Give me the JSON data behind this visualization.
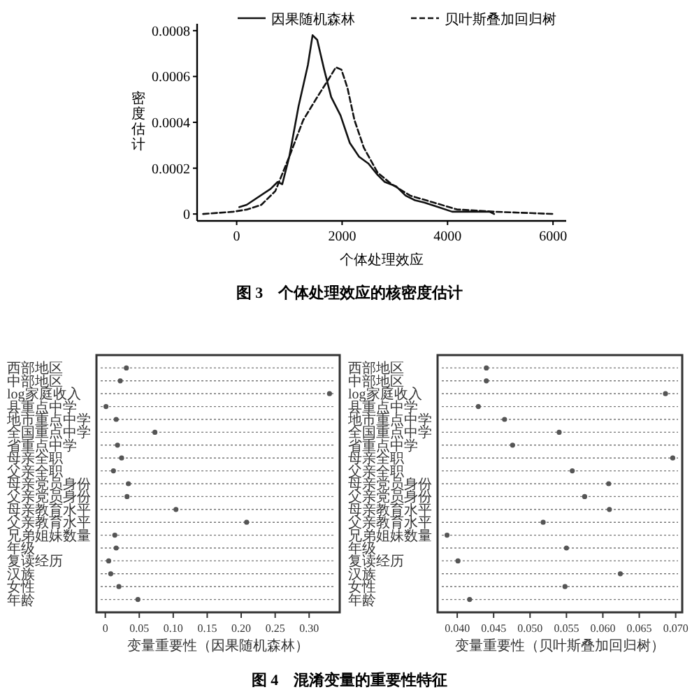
{
  "chart_data": [
    {
      "type": "line",
      "title": "图 3　个体处理效应的核密度估计",
      "xlabel": "个体处理效应",
      "ylabel": "密度估计",
      "legend": "top",
      "grid": false,
      "xlim": [
        -750,
        6250
      ],
      "xticks": [
        0,
        2000,
        4000,
        6000
      ],
      "ylim": [
        -3e-05,
        0.00083
      ],
      "yticks": [
        0,
        0.0002,
        0.0004,
        0.0006,
        0.0008
      ],
      "series": [
        {
          "name": "因果随机森林",
          "color": "#111111",
          "line_style": "solid",
          "x": [
            50,
            190,
            645,
            777,
            865,
            998,
            1174,
            1351,
            1440,
            1528,
            1660,
            1793,
            1970,
            2146,
            2322,
            2499,
            2675,
            2808,
            3029,
            3205,
            3382,
            3559,
            3824,
            4088,
            4530,
            4795,
            4883
          ],
          "values": [
            3e-05,
            4e-05,
            0.00011,
            0.00014,
            0.00013,
            0.00025,
            0.00047,
            0.00065,
            0.00078,
            0.00076,
            0.00063,
            0.00051,
            0.00043,
            0.00031,
            0.00025,
            0.00022,
            0.00017,
            0.00014,
            0.00012,
            8e-05,
            6e-05,
            5e-05,
            3e-05,
            1e-05,
            1e-05,
            1e-05,
            0
          ]
        },
        {
          "name": "贝叶斯叠加回归树",
          "color": "#111111",
          "line_style": "dashed",
          "x": [
            -636,
            -62,
            203,
            468,
            733,
            998,
            1263,
            1528,
            1749,
            1881,
            1987,
            2102,
            2234,
            2411,
            2675,
            2940,
            3294,
            3736,
            4177,
            4883,
            6031
          ],
          "values": [
            0,
            1e-05,
            2e-05,
            4e-05,
            0.0001,
            0.00025,
            0.00041,
            0.00051,
            0.00059,
            0.00064,
            0.00063,
            0.00055,
            0.00041,
            0.00029,
            0.00018,
            0.00013,
            8e-05,
            5e-05,
            2e-05,
            1e-05,
            0
          ]
        }
      ]
    },
    {
      "type": "scatter",
      "orientation": "horizontal",
      "grid": "y",
      "marker": "circle",
      "color": "#555555",
      "xlabel": "变量重要性（因果随机森林）",
      "title": "图 4　混淆变量的重要性特征",
      "categories": [
        "西部地区",
        "中部地区",
        "log家庭收入",
        "县重点中学",
        "地市重点中学",
        "全国重点中学",
        "省重点中学",
        "母亲全职",
        "父亲全职",
        "母亲党员身份",
        "父亲党员身份",
        "母亲教育水平",
        "父亲教育水平",
        "兄弟姐妹数量",
        "年级",
        "复读经历",
        "汉族",
        "女性",
        "年龄"
      ],
      "values": [
        0.031,
        0.022,
        0.33,
        0.001,
        0.016,
        0.073,
        0.018,
        0.024,
        0.012,
        0.034,
        0.032,
        0.104,
        0.208,
        0.014,
        0.016,
        0.005,
        0.008,
        0.02,
        0.048
      ],
      "xlim": [
        -0.013,
        0.345
      ],
      "xticks": [
        0,
        0.05,
        {
          "value": 0.1,
          "label": "0.10"
        },
        0.15,
        {
          "value": 0.2,
          "label": "0.20"
        },
        0.25,
        {
          "value": 0.3,
          "label": "0.30"
        }
      ]
    },
    {
      "type": "scatter",
      "orientation": "horizontal",
      "grid": "y",
      "marker": "circle",
      "color": "#555555",
      "xlabel": "变量重要性（贝叶斯叠加回归树）",
      "categories": [
        "西部地区",
        "中部地区",
        "log家庭收入",
        "县重点中学",
        "地市重点中学",
        "全国重点中学",
        "省重点中学",
        "母亲全职",
        "父亲全职",
        "母亲党员身份",
        "父亲党员身份",
        "母亲教育水平",
        "父亲教育水平",
        "兄弟姐妹数量",
        "年级",
        "复读经历",
        "汉族",
        "女性",
        "年龄"
      ],
      "values": [
        0.044,
        0.044,
        0.0686,
        0.0429,
        0.0465,
        0.054,
        0.0476,
        0.0696,
        0.0558,
        0.0608,
        0.0575,
        0.0609,
        0.0518,
        0.0386,
        0.055,
        0.0401,
        0.0624,
        0.0548,
        0.0417
      ],
      "xlim": [
        0.0373,
        0.0709
      ],
      "xticks": [
        {
          "value": 0.04,
          "label": "0.040"
        },
        {
          "value": 0.045,
          "label": "0.045"
        },
        {
          "value": 0.05,
          "label": "0.050"
        },
        {
          "value": 0.055,
          "label": "0.055"
        },
        {
          "value": 0.06,
          "label": "0.060"
        },
        {
          "value": 0.065,
          "label": "0.065"
        },
        {
          "value": 0.07,
          "label": "0.070"
        }
      ]
    }
  ]
}
